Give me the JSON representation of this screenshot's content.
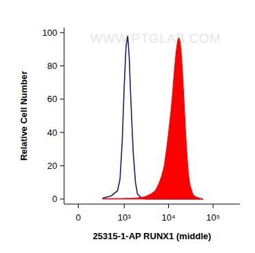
{
  "chart_data": {
    "type": "line",
    "xlabel": "25315-1-AP RUNX1 (middle)",
    "ylabel": "Relative Cell Number",
    "annotations": [
      "WWW.PTGLAB.COM"
    ],
    "log": "x",
    "x": [
      300,
      500,
      700,
      800,
      900,
      1000,
      1100,
      1200,
      1300,
      1400,
      1600,
      1800,
      2000,
      2500,
      3000,
      4000,
      5000,
      6000,
      7000,
      8000,
      9000,
      10000,
      11000,
      12000,
      13000,
      14000,
      15000,
      16000,
      17000,
      18000,
      19000,
      20000,
      22000,
      24000,
      26000,
      28000,
      30000,
      35000,
      40000,
      50000,
      60000
    ],
    "series": [
      {
        "type": "line",
        "color": "#1c1c7a",
        "values": [
          0.5,
          2,
          5,
          12,
          35,
          68,
          92,
          98,
          85,
          62,
          28,
          10,
          3,
          0.5,
          0,
          0,
          0,
          0,
          0,
          0,
          0,
          0,
          0,
          0,
          0,
          0,
          0,
          0,
          0,
          0,
          0,
          0,
          0,
          0,
          0,
          0,
          0,
          0,
          0,
          0,
          0
        ]
      },
      {
        "type": "area",
        "color": "#ff0000",
        "values": [
          0.3,
          0.3,
          0.3,
          0.3,
          0.3,
          0.4,
          0.4,
          0.4,
          0.4,
          0.5,
          0.5,
          0.6,
          0.7,
          1,
          1.5,
          3,
          5,
          9,
          14,
          20,
          30,
          40,
          50,
          60,
          72,
          82,
          90,
          95,
          97,
          95,
          90,
          82,
          62,
          42,
          26,
          15,
          9,
          3,
          1.5,
          0.5,
          0
        ]
      }
    ],
    "xlim": [
      -150,
      400000
    ],
    "xticks": [
      0,
      {
        "value": 1000,
        "label": "10³"
      },
      {
        "value": 10000,
        "label": "10⁴"
      },
      {
        "value": 100000,
        "label": "10⁵"
      }
    ],
    "ylim": [
      -3,
      103
    ],
    "yticks": [
      0,
      20,
      40,
      60,
      80,
      100
    ],
    "grid": false
  }
}
